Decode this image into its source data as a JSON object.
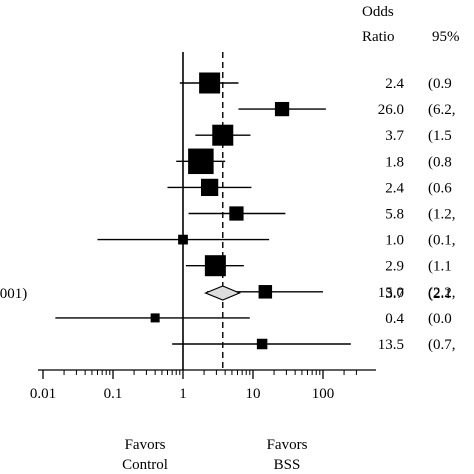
{
  "chart_data": {
    "type": "forest",
    "x_scale": "log",
    "xlim": [
      0.01,
      300
    ],
    "x_ticks": [
      0.01,
      0.1,
      1,
      10,
      100
    ],
    "x_tick_labels": [
      "0.01",
      "0.1",
      "1",
      "10",
      "100"
    ],
    "reference_line": 1,
    "pooled_line": 3.7,
    "column_headers": {
      "or_line1": "Odds",
      "or_line2": "Ratio",
      "ci": "95%"
    },
    "favors_left": [
      "Favors",
      "Control"
    ],
    "favors_right": [
      "Favors",
      "BSS"
    ],
    "studies": [
      {
        "or": 2.4,
        "lo": 0.9,
        "hi": 6.2,
        "weight": 1.0,
        "or_label": "2.4",
        "ci_label": "(0.9"
      },
      {
        "or": 26.0,
        "lo": 6.2,
        "hi": 110,
        "weight": 0.55,
        "or_label": "26.0",
        "ci_label": "(6.2,"
      },
      {
        "or": 3.7,
        "lo": 1.5,
        "hi": 9.2,
        "weight": 1.0,
        "or_label": "3.7",
        "ci_label": "(1.5"
      },
      {
        "or": 1.8,
        "lo": 0.8,
        "hi": 4.0,
        "weight": 1.3,
        "or_label": "1.8",
        "ci_label": "(0.8"
      },
      {
        "or": 2.4,
        "lo": 0.6,
        "hi": 9.5,
        "weight": 0.75,
        "or_label": "2.4",
        "ci_label": "(0.6"
      },
      {
        "or": 5.8,
        "lo": 1.2,
        "hi": 29,
        "weight": 0.55,
        "or_label": "5.8",
        "ci_label": "(1.2,"
      },
      {
        "or": 1.0,
        "lo": 0.06,
        "hi": 17,
        "weight": 0.25,
        "or_label": "1.0",
        "ci_label": "(0.1,"
      },
      {
        "or": 2.9,
        "lo": 1.1,
        "hi": 7.4,
        "weight": 1.0,
        "or_label": "2.9",
        "ci_label": "(1.1"
      },
      {
        "or": 15.0,
        "lo": 2.2,
        "hi": 100,
        "weight": 0.5,
        "or_label": "15.0",
        "ci_label": "(2.2,"
      },
      {
        "or": 0.4,
        "lo": 0.015,
        "hi": 9.0,
        "weight": 0.2,
        "or_label": "0.4",
        "ci_label": "(0.0"
      },
      {
        "or": 13.5,
        "lo": 0.7,
        "hi": 250,
        "weight": 0.3,
        "or_label": "13.5",
        "ci_label": "(0.7,"
      }
    ],
    "pooled": {
      "or": 3.7,
      "lo": 2.1,
      "hi": 6.4,
      "or_label": "3.7",
      "ci_label": "(2.1",
      "left_label": ".001)"
    }
  }
}
